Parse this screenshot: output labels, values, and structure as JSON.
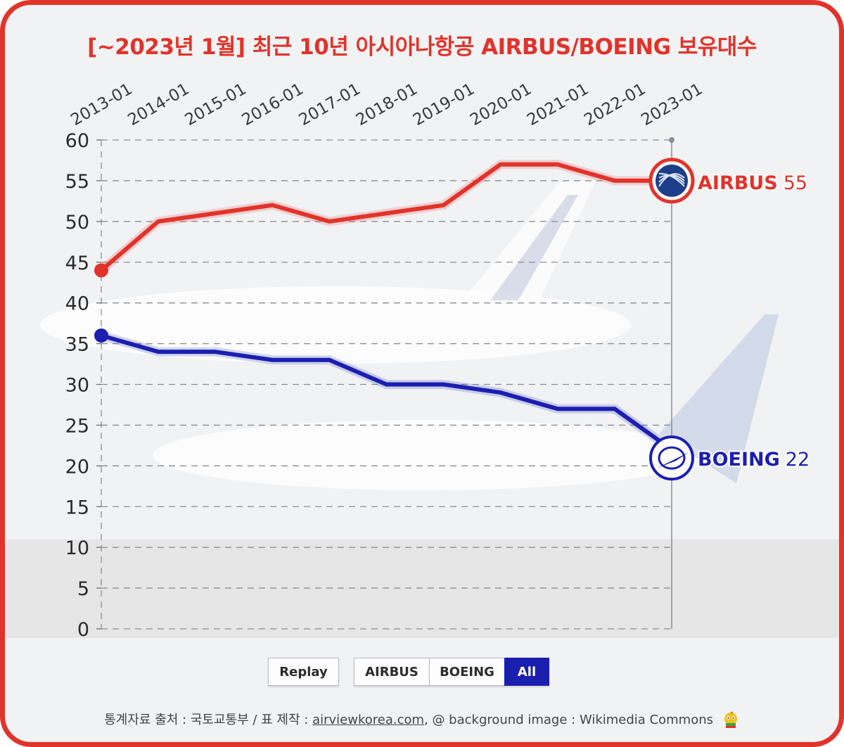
{
  "title": "[~2023년 1월] 최근 10년 아시아나항공 AIRBUS/BOEING 보유대수",
  "controls": {
    "replay_label": "Replay",
    "airbus_label": "AIRBUS",
    "boeing_label": "BOEING",
    "all_label": "All",
    "active": "All"
  },
  "source": {
    "prefix": "통계자료 출처 : 국토교통부 / 표 제작 : ",
    "link_text": "airviewkorea.com",
    "suffix": ", @ background image : Wikimedia Commons"
  },
  "colors": {
    "airbus": "#e2332a",
    "boeing": "#1b1fb0",
    "frame": "#e2332a"
  },
  "icons": {
    "airbus_marker": "airbus-logo-icon",
    "boeing_marker": "boeing-logo-icon",
    "mascot": "mascot-icon"
  },
  "chart_data": {
    "type": "line",
    "title": "[~2023년 1월] 최근 10년 아시아나항공 AIRBUS/BOEING 보유대수",
    "categories": [
      "2013-01",
      "2014-01",
      "2015-01",
      "2016-01",
      "2017-01",
      "2018-01",
      "2019-01",
      "2020-01",
      "2021-01",
      "2022-01",
      "2023-01"
    ],
    "series": [
      {
        "name": "AIRBUS",
        "values": [
          44,
          50,
          51,
          52,
          50,
          51,
          52,
          57,
          57,
          55,
          55
        ],
        "end_label": "AIRBUS",
        "end_value": "55"
      },
      {
        "name": "BOEING",
        "values": [
          36,
          34,
          34,
          33,
          33,
          30,
          30,
          29,
          27,
          27,
          22
        ],
        "end_label": "BOEING",
        "end_value": "22"
      }
    ],
    "ylim": [
      0,
      60
    ],
    "yticks": [
      0,
      5,
      10,
      15,
      20,
      25,
      30,
      35,
      40,
      45,
      50,
      55,
      60
    ],
    "xlabel": "",
    "ylabel": "",
    "grid": true,
    "legend": "end-labels"
  }
}
